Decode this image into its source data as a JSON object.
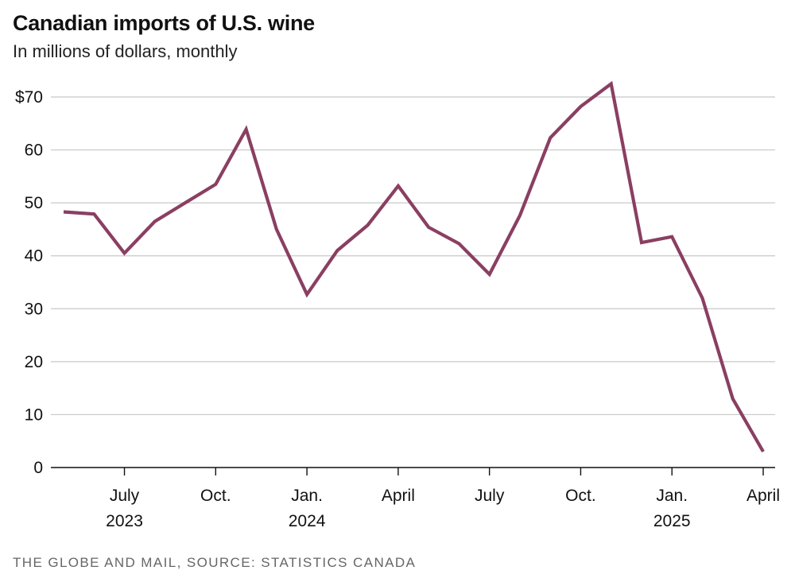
{
  "title": "Canadian imports of U.S. wine",
  "subtitle": "In millions of dollars, monthly",
  "source": "THE GLOBE AND MAIL, SOURCE: STATISTICS CANADA",
  "colors": {
    "line": "#8a3f62",
    "grid": "#c8c8c8",
    "axis": "#111111"
  },
  "chart_data": {
    "type": "line",
    "title": "Canadian imports of U.S. wine",
    "subtitle": "In millions of dollars, monthly",
    "xlabel": "",
    "ylabel": "",
    "ylim": [
      0,
      72
    ],
    "yticks": [
      {
        "value": 0,
        "label": "0"
      },
      {
        "value": 10,
        "label": "10"
      },
      {
        "value": 20,
        "label": "20"
      },
      {
        "value": 30,
        "label": "30"
      },
      {
        "value": 40,
        "label": "40"
      },
      {
        "value": 50,
        "label": "50"
      },
      {
        "value": 60,
        "label": "60"
      },
      {
        "value": 70,
        "label": "$70"
      }
    ],
    "x": [
      "2023-05",
      "2023-06",
      "2023-07",
      "2023-08",
      "2023-09",
      "2023-10",
      "2023-11",
      "2023-12",
      "2024-01",
      "2024-02",
      "2024-03",
      "2024-04",
      "2024-05",
      "2024-06",
      "2024-07",
      "2024-08",
      "2024-09",
      "2024-10",
      "2024-11",
      "2024-12",
      "2025-01",
      "2025-02",
      "2025-03",
      "2025-04"
    ],
    "xticks": [
      {
        "index": 2,
        "label": "July",
        "year": "2023"
      },
      {
        "index": 5,
        "label": "Oct.",
        "year": ""
      },
      {
        "index": 8,
        "label": "Jan.",
        "year": "2024"
      },
      {
        "index": 11,
        "label": "April",
        "year": ""
      },
      {
        "index": 14,
        "label": "July",
        "year": ""
      },
      {
        "index": 17,
        "label": "Oct.",
        "year": ""
      },
      {
        "index": 20,
        "label": "Jan.",
        "year": "2025"
      },
      {
        "index": 23,
        "label": "April",
        "year": ""
      }
    ],
    "series": [
      {
        "name": "Canadian imports of U.S. wine",
        "values": [
          48.3,
          47.9,
          40.5,
          46.5,
          50.0,
          53.5,
          63.9,
          45.0,
          32.7,
          41.0,
          45.8,
          53.2,
          45.4,
          42.3,
          36.5,
          47.6,
          62.3,
          68.2,
          72.5,
          42.5,
          43.6,
          32.0,
          13.0,
          3.0
        ]
      }
    ],
    "grid": true,
    "legend": "none"
  }
}
